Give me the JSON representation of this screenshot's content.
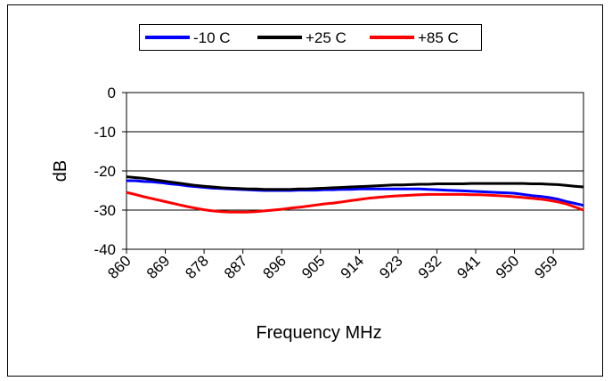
{
  "chart_data": {
    "type": "line",
    "title": "",
    "xlabel": "Frequency MHz",
    "ylabel": "dB",
    "xlim": [
      860,
      966
    ],
    "ylim": [
      -40,
      0
    ],
    "yticks": [
      0,
      -10,
      -20,
      -30,
      -40
    ],
    "xticks": [
      "860",
      "869",
      "878",
      "887",
      "896",
      "905",
      "914",
      "923",
      "932",
      "941",
      "950",
      "959"
    ],
    "grid": "horizontal",
    "legend_position": "top",
    "series": [
      {
        "name": "-10 C",
        "color": "#0000ff",
        "x": [
          860,
          862,
          864,
          866,
          868,
          870,
          872,
          874,
          876,
          878,
          880,
          882,
          884,
          886,
          888,
          890,
          892,
          894,
          896,
          898,
          900,
          902,
          904,
          906,
          908,
          910,
          912,
          914,
          916,
          918,
          920,
          922,
          924,
          926,
          928,
          930,
          932,
          934,
          936,
          938,
          940,
          942,
          944,
          946,
          948,
          950,
          952,
          954,
          956,
          958,
          960,
          962,
          964,
          966
        ],
        "values": [
          -22.5,
          -22.5,
          -22.7,
          -22.8,
          -23.0,
          -23.3,
          -23.5,
          -23.8,
          -24.0,
          -24.2,
          -24.4,
          -24.5,
          -24.6,
          -24.7,
          -24.8,
          -24.9,
          -25.0,
          -25.0,
          -25.0,
          -25.0,
          -24.9,
          -24.9,
          -24.9,
          -24.8,
          -24.8,
          -24.7,
          -24.7,
          -24.6,
          -24.6,
          -24.6,
          -24.6,
          -24.6,
          -24.6,
          -24.6,
          -24.6,
          -24.7,
          -24.8,
          -24.9,
          -25.0,
          -25.1,
          -25.2,
          -25.3,
          -25.4,
          -25.5,
          -25.6,
          -25.7,
          -26.0,
          -26.3,
          -26.5,
          -26.8,
          -27.2,
          -27.8,
          -28.3,
          -28.8
        ]
      },
      {
        "name": "+25 C",
        "color": "#000000",
        "x": [
          860,
          862,
          864,
          866,
          868,
          870,
          872,
          874,
          876,
          878,
          880,
          882,
          884,
          886,
          888,
          890,
          892,
          894,
          896,
          898,
          900,
          902,
          904,
          906,
          908,
          910,
          912,
          914,
          916,
          918,
          920,
          922,
          924,
          926,
          928,
          930,
          932,
          934,
          936,
          938,
          940,
          942,
          944,
          946,
          948,
          950,
          952,
          954,
          956,
          958,
          960,
          962,
          964,
          966
        ],
        "values": [
          -21.5,
          -21.7,
          -21.9,
          -22.2,
          -22.5,
          -22.8,
          -23.1,
          -23.4,
          -23.7,
          -23.9,
          -24.1,
          -24.3,
          -24.4,
          -24.5,
          -24.6,
          -24.6,
          -24.7,
          -24.7,
          -24.7,
          -24.7,
          -24.6,
          -24.6,
          -24.5,
          -24.4,
          -24.3,
          -24.2,
          -24.1,
          -24.0,
          -23.9,
          -23.8,
          -23.7,
          -23.6,
          -23.6,
          -23.5,
          -23.4,
          -23.4,
          -23.3,
          -23.3,
          -23.3,
          -23.3,
          -23.2,
          -23.2,
          -23.2,
          -23.2,
          -23.2,
          -23.2,
          -23.2,
          -23.3,
          -23.3,
          -23.4,
          -23.5,
          -23.7,
          -23.9,
          -24.1
        ]
      },
      {
        "name": "+85 C",
        "color": "#ff0000",
        "x": [
          860,
          862,
          864,
          866,
          868,
          870,
          872,
          874,
          876,
          878,
          880,
          882,
          884,
          886,
          888,
          890,
          892,
          894,
          896,
          898,
          900,
          902,
          904,
          906,
          908,
          910,
          912,
          914,
          916,
          918,
          920,
          922,
          924,
          926,
          928,
          930,
          932,
          934,
          936,
          938,
          940,
          942,
          944,
          946,
          948,
          950,
          952,
          954,
          956,
          958,
          960,
          962,
          964,
          966
        ],
        "values": [
          -25.5,
          -26.0,
          -26.6,
          -27.1,
          -27.6,
          -28.1,
          -28.6,
          -29.1,
          -29.5,
          -29.9,
          -30.2,
          -30.4,
          -30.5,
          -30.5,
          -30.5,
          -30.4,
          -30.2,
          -30.0,
          -29.8,
          -29.5,
          -29.3,
          -29.0,
          -28.7,
          -28.4,
          -28.2,
          -27.9,
          -27.6,
          -27.3,
          -27.0,
          -26.8,
          -26.6,
          -26.4,
          -26.3,
          -26.2,
          -26.1,
          -26.0,
          -26.0,
          -26.0,
          -26.0,
          -26.0,
          -26.1,
          -26.1,
          -26.2,
          -26.3,
          -26.4,
          -26.6,
          -26.8,
          -27.0,
          -27.2,
          -27.5,
          -27.9,
          -28.4,
          -29.2,
          -30.0
        ]
      }
    ]
  }
}
